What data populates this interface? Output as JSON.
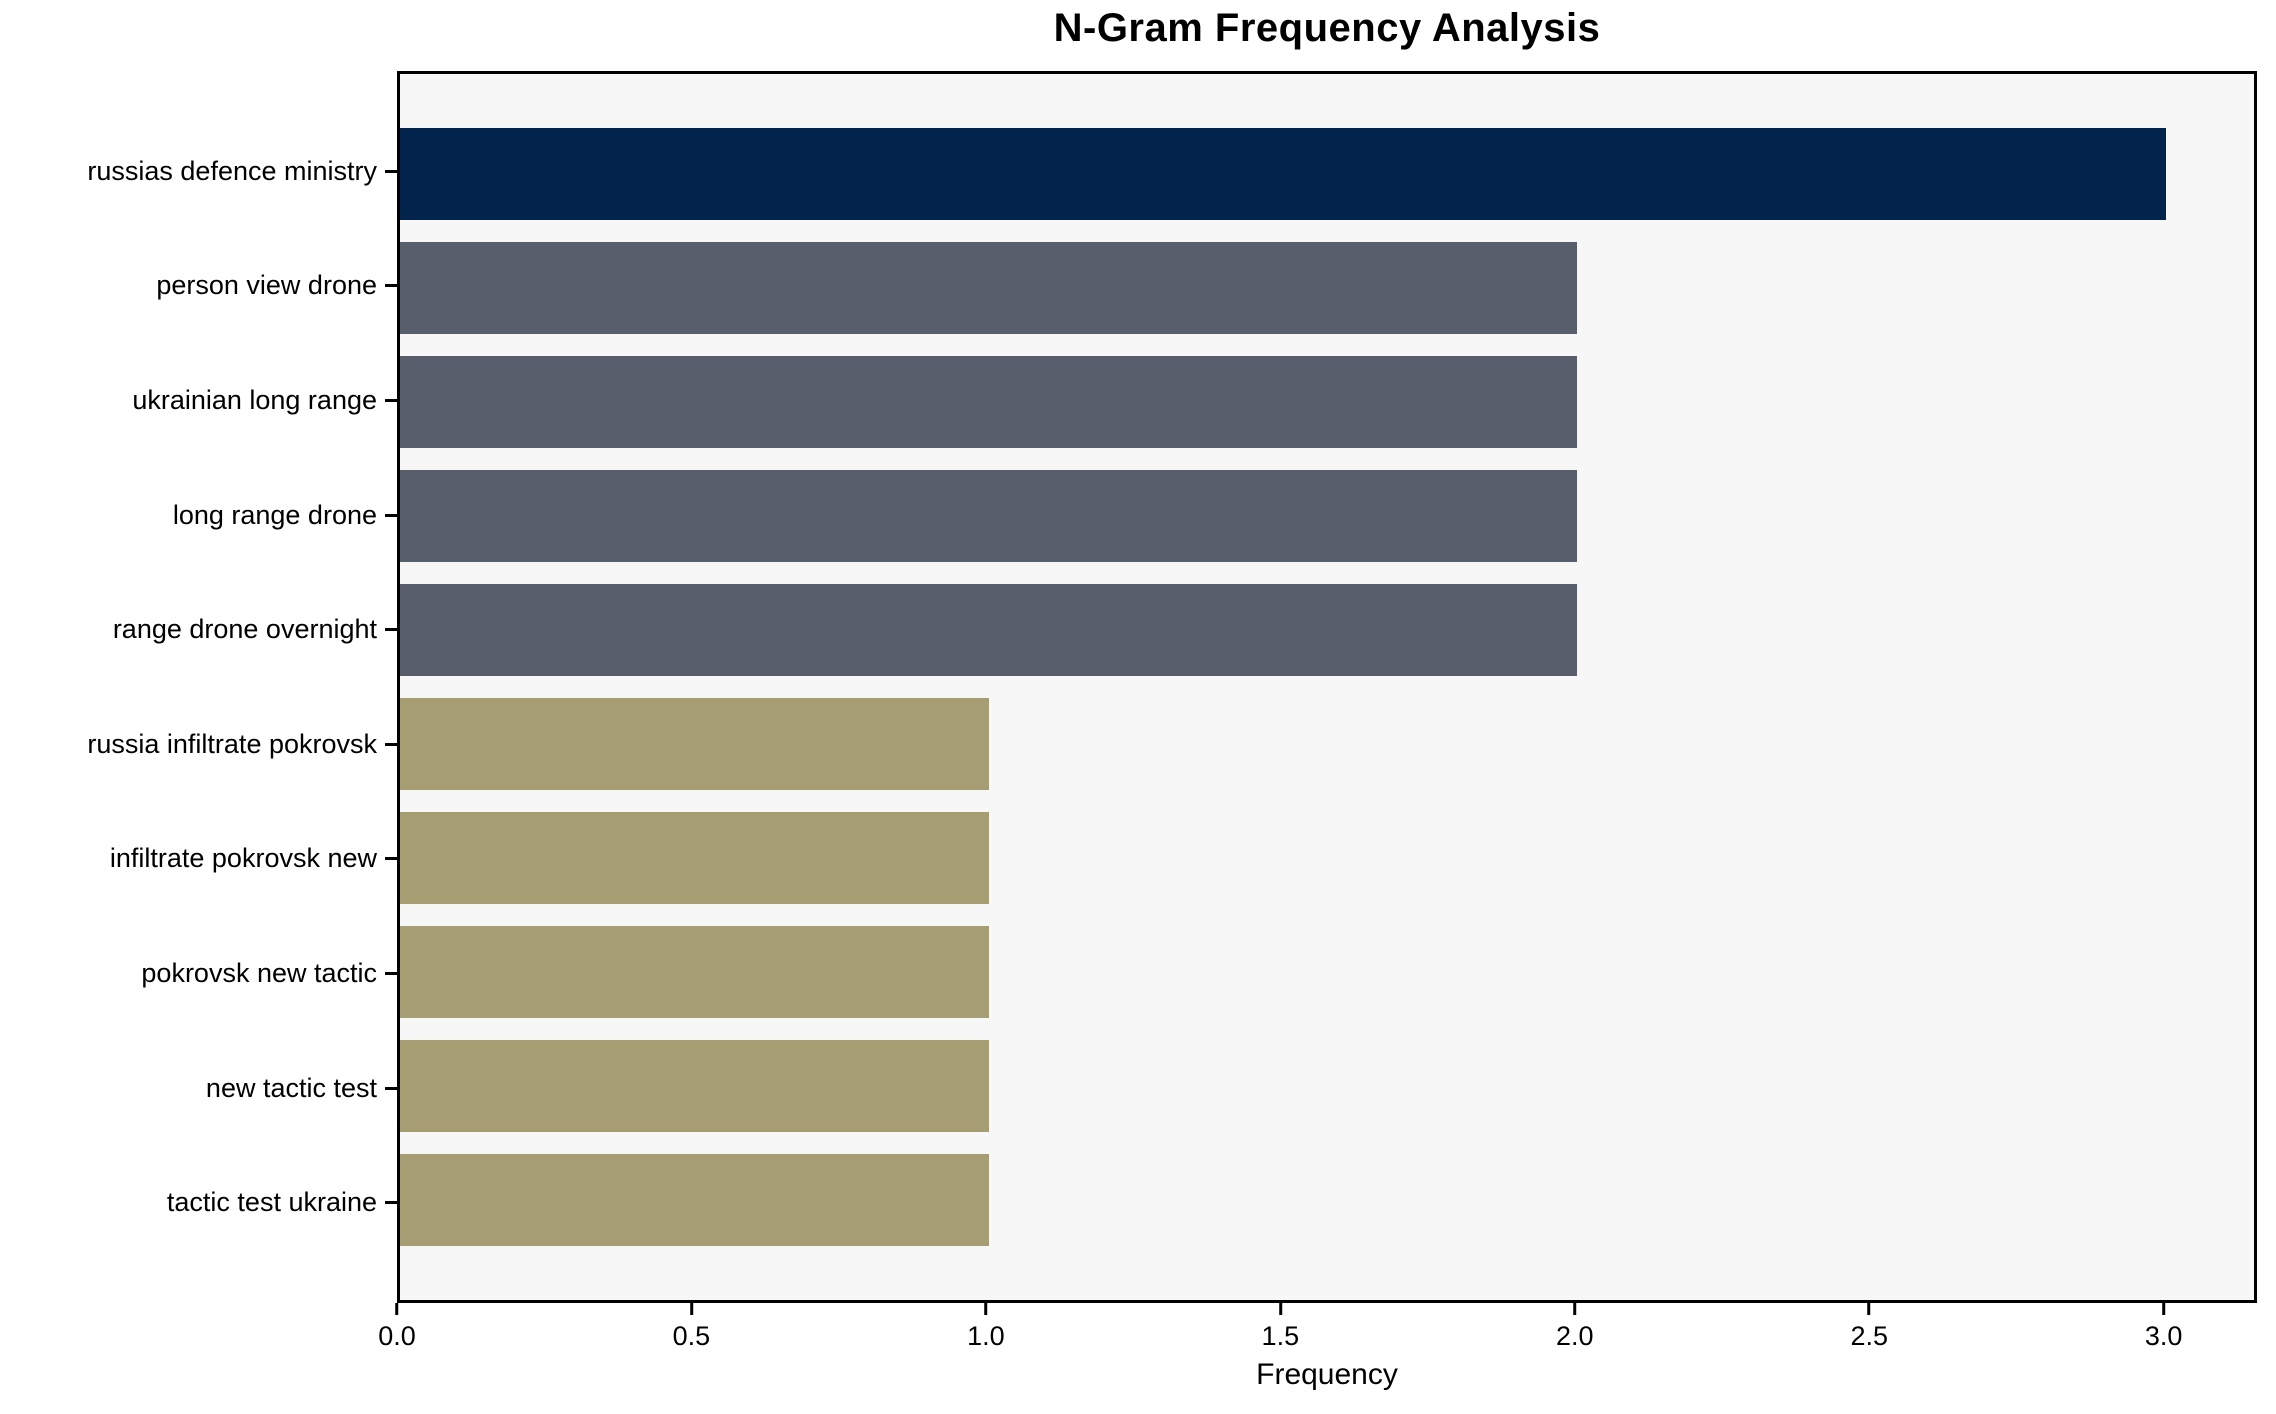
{
  "chart_data": {
    "type": "bar",
    "orientation": "horizontal",
    "title": "N-Gram Frequency Analysis",
    "categories": [
      "russias defence ministry",
      "person view drone",
      "ukrainian long range",
      "long range drone",
      "range drone overnight",
      "russia infiltrate pokrovsk",
      "infiltrate pokrovsk new",
      "pokrovsk new tactic",
      "new tactic test",
      "tactic test ukraine"
    ],
    "values": [
      3,
      2,
      2,
      2,
      2,
      1,
      1,
      1,
      1,
      1
    ],
    "bar_colors": [
      "#02234C",
      "#575D6B",
      "#575D6B",
      "#575D6B",
      "#575D6B",
      "#A69D72",
      "#A69D72",
      "#A69D72",
      "#A69D72",
      "#A69D72"
    ],
    "xlabel": "Frequency",
    "ylabel": "",
    "xlim": [
      0,
      3.15
    ],
    "xticks": [
      0.0,
      0.5,
      1.0,
      1.5,
      2.0,
      2.5,
      3.0
    ],
    "xtick_labels": [
      "0.0",
      "0.5",
      "1.0",
      "1.5",
      "2.0",
      "2.5",
      "3.0"
    ],
    "bar_height_frac": 0.8,
    "grid": false,
    "legend": null,
    "plot_bg": "#F7F7F8",
    "fig_bg": "#FFFFFF",
    "frame_color": "#000000"
  }
}
